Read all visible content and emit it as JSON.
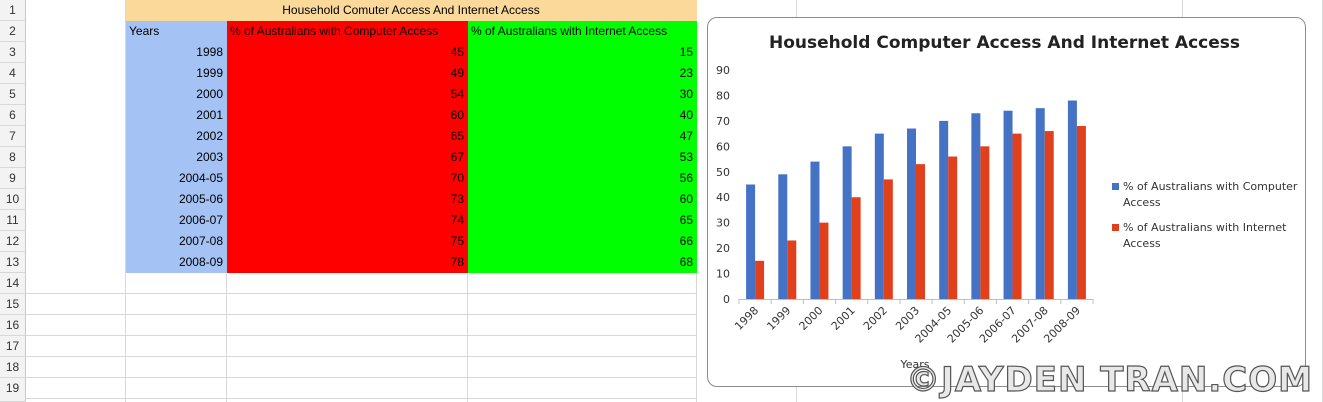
{
  "sheet": {
    "row_numbers": [
      "1",
      "2",
      "3",
      "4",
      "5",
      "6",
      "7",
      "8",
      "9",
      "10",
      "11",
      "12",
      "13",
      "14",
      "15",
      "16",
      "17",
      "18",
      "19"
    ],
    "title": "Household Comuter Access And Internet Access",
    "headers": [
      "Years",
      "% of Australians with Computer Access",
      "% of Australians with Internet Access"
    ],
    "rows": [
      [
        "1998",
        "45",
        "15"
      ],
      [
        "1999",
        "49",
        "23"
      ],
      [
        "2000",
        "54",
        "30"
      ],
      [
        "2001",
        "60",
        "40"
      ],
      [
        "2002",
        "65",
        "47"
      ],
      [
        "2003",
        "67",
        "53"
      ],
      [
        "2004-05",
        "70",
        "56"
      ],
      [
        "2005-06",
        "73",
        "60"
      ],
      [
        "2006-07",
        "74",
        "65"
      ],
      [
        "2007-08",
        "75",
        "66"
      ],
      [
        "2008-09",
        "78",
        "68"
      ]
    ],
    "colors": {
      "year": "#a4c2f4",
      "computer": "#ff0000",
      "internet": "#00ff00",
      "title": "#fad99a"
    }
  },
  "chart_data": {
    "type": "bar",
    "title": "Household Computer Access And Internet Access",
    "xlabel": "Years",
    "ylabel": "",
    "categories": [
      "1998",
      "1999",
      "2000",
      "2001",
      "2002",
      "2003",
      "2004-05",
      "2005-06",
      "2006-07",
      "2007-08",
      "2008-09"
    ],
    "series": [
      {
        "name": "% of Australians with Computer Access",
        "color": "#4472c4",
        "values": [
          45,
          49,
          54,
          60,
          65,
          67,
          70,
          73,
          74,
          75,
          78
        ]
      },
      {
        "name": "% of Australians with Internet Access",
        "color": "#e0401c",
        "values": [
          15,
          23,
          30,
          40,
          47,
          53,
          56,
          60,
          65,
          66,
          68
        ]
      }
    ],
    "ylim": [
      0,
      90
    ],
    "yticks": [
      "0",
      "10",
      "20",
      "30",
      "40",
      "50",
      "60",
      "70",
      "80",
      "90"
    ],
    "grid": false,
    "legend": "right"
  },
  "watermark": "©JAYDEN TRAN.COM"
}
